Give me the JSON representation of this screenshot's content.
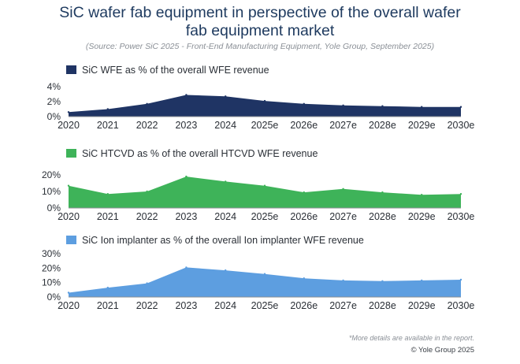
{
  "header": {
    "title_line1": "SiC wafer fab equipment in perspective of the overall wafer",
    "title_line2": "fab equipment market",
    "subtitle": "(Source: Power SiC 2025 - Front-End Manufacturing Equipment, Yole Group, September 2025)"
  },
  "chart_data": [
    {
      "type": "area",
      "legend": "SiC WFE as % of the overall WFE revenue",
      "color": "#1f3464",
      "categories": [
        "2020",
        "2021",
        "2022",
        "2023",
        "2024",
        "2025e",
        "2026e",
        "2027e",
        "2028e",
        "2029e",
        "2030e"
      ],
      "values": [
        0.6,
        1.0,
        1.7,
        2.9,
        2.7,
        2.1,
        1.7,
        1.5,
        1.4,
        1.3,
        1.3
      ],
      "yticks": [
        "0%",
        "2%",
        "4%"
      ],
      "ylim": [
        0,
        4
      ]
    },
    {
      "type": "area",
      "legend": "SiC HTCVD as % of the overall HTCVD WFE revenue",
      "color": "#3eb359",
      "categories": [
        "2020",
        "2021",
        "2022",
        "2023",
        "2024",
        "2025e",
        "2026e",
        "2027e",
        "2028e",
        "2029e",
        "2030e"
      ],
      "values": [
        13.5,
        8.5,
        10,
        19,
        16,
        13.5,
        9.5,
        11.5,
        9.5,
        8,
        8.5
      ],
      "yticks": [
        "0%",
        "10%",
        "20%"
      ],
      "ylim": [
        0,
        20
      ]
    },
    {
      "type": "area",
      "legend": "SiC Ion implanter  as % of the overall Ion implanter WFE revenue",
      "color": "#5d9ee0",
      "categories": [
        "2020",
        "2021",
        "2022",
        "2023",
        "2024",
        "2025e",
        "2026e",
        "2027e",
        "2028e",
        "2029e",
        "2030e"
      ],
      "values": [
        3,
        6.5,
        9.5,
        20.5,
        18.5,
        16,
        13,
        11.5,
        11,
        11.5,
        12
      ],
      "yticks": [
        "0%",
        "10%",
        "20%",
        "30%"
      ],
      "ylim": [
        0,
        30
      ]
    }
  ],
  "footer": {
    "note": "*More details are available  in the report.",
    "copyright": "© Yole Group 2025"
  }
}
